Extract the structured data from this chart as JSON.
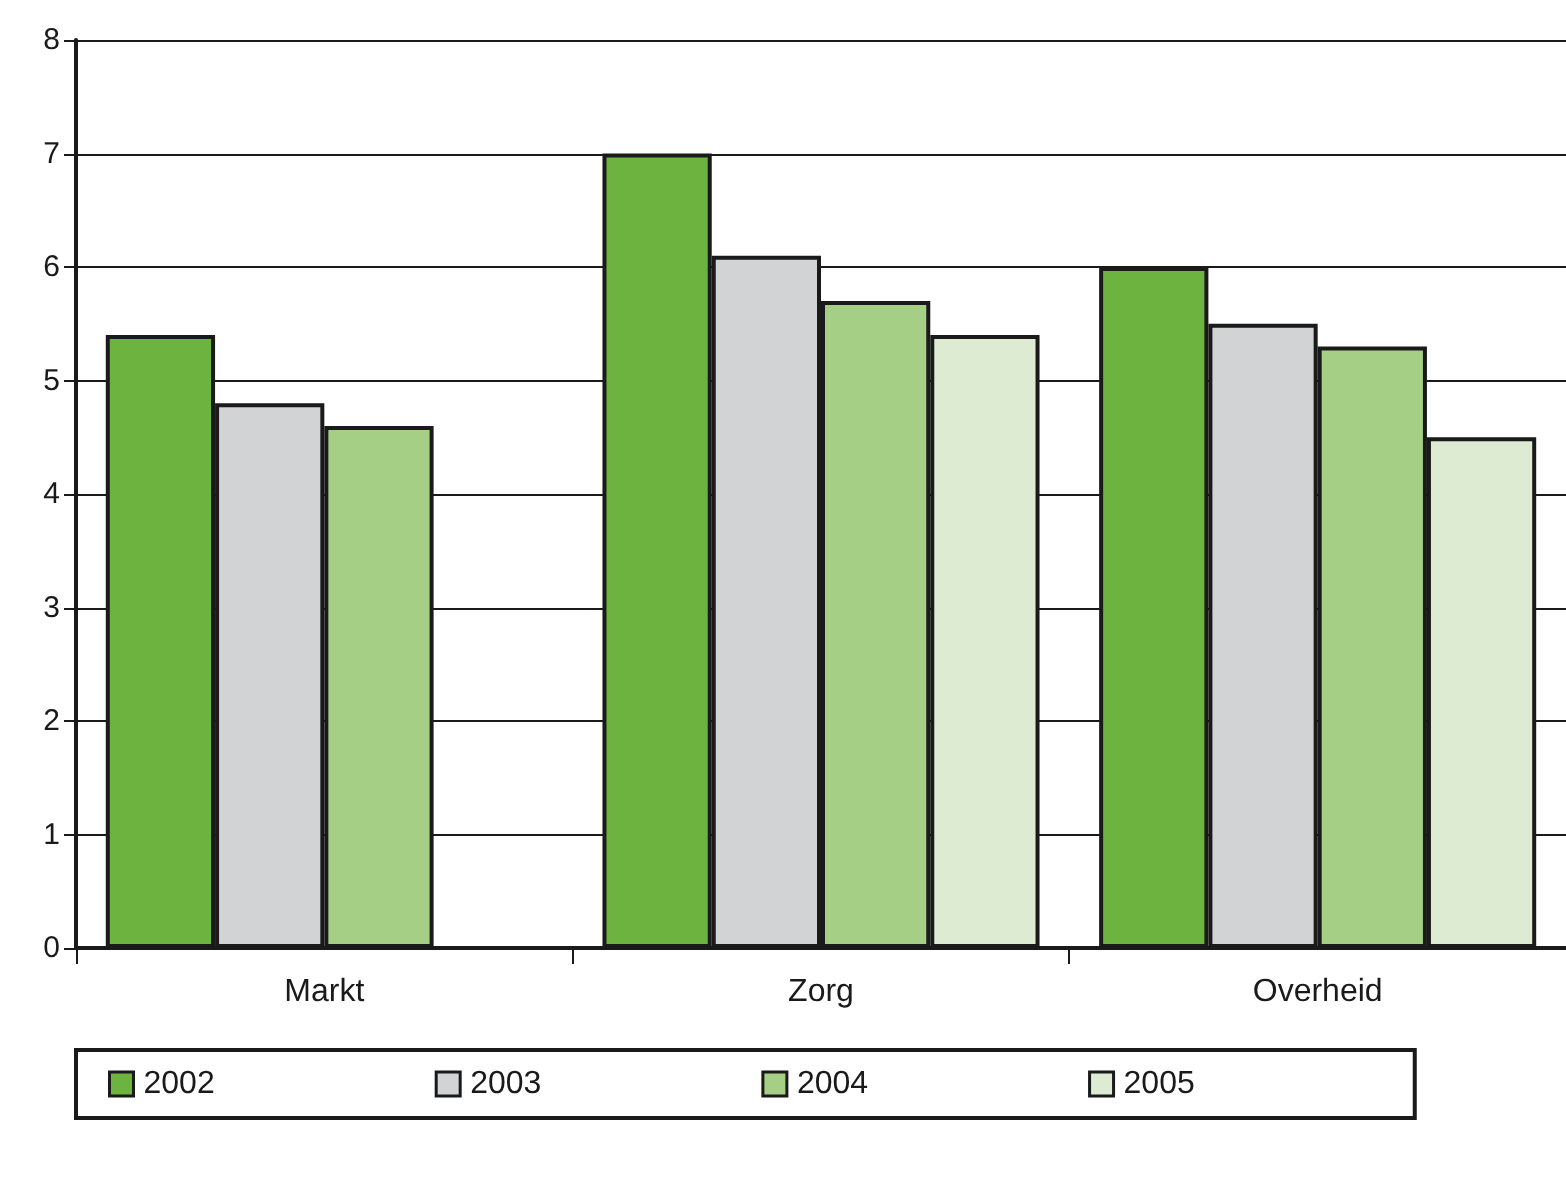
{
  "chart_data": {
    "type": "bar",
    "categories": [
      "Markt",
      "Zorg",
      "Overheid"
    ],
    "series": [
      {
        "name": "2002",
        "color": "#6db33f",
        "values": [
          5.4,
          7.0,
          6.0
        ]
      },
      {
        "name": "2003",
        "color": "#d1d3d4",
        "values": [
          4.8,
          6.1,
          5.5
        ]
      },
      {
        "name": "2004",
        "color": "#a6cf86",
        "values": [
          4.6,
          5.7,
          5.3
        ]
      },
      {
        "name": "2005",
        "color": "#deebd3",
        "values": [
          null,
          5.4,
          4.5
        ]
      }
    ],
    "ylim": [
      0,
      8
    ],
    "yticks": [
      0,
      1,
      2,
      3,
      4,
      5,
      6,
      7,
      8
    ],
    "grid": "y",
    "legend": "bottom"
  }
}
